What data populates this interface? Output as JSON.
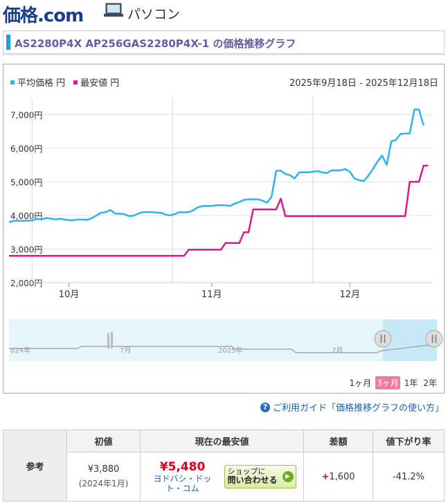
{
  "header": {
    "logo_main": "価格",
    "logo_dot": ".com",
    "category_icon": "laptop-icon",
    "category": "パソコン"
  },
  "title": "AS2280P4X AP256GAS2280P4X-1 の価格推移グラフ",
  "legend": {
    "avg": "平均価格 円",
    "min": "最安値 円"
  },
  "date_range": "2025年9月18日 - 2025年12月18日",
  "range_buttons": [
    "1ヶ月",
    "3ヶ月",
    "1年",
    "2年"
  ],
  "active_range": "3ヶ月",
  "navigator": {
    "labels": [
      "024年",
      "7月",
      "2025年",
      "7月"
    ]
  },
  "guide_link": "ご利用ガイド「価格推移グラフの使い方」",
  "reference": {
    "row_label": "参考",
    "headers": [
      "初値",
      "現在の最安値",
      "差額",
      "値下がり率"
    ],
    "initial_price": "¥3,880",
    "initial_date": "(2024年1月)",
    "current_price": "¥5,480",
    "shop_name": "ヨドバシ・ドット・コム",
    "ask_button_line1": "ショップに",
    "ask_button_line2": "問い合わせる",
    "diff_sign": "+",
    "diff_value": "1,600",
    "drop_rate": "-41.2%"
  },
  "colors": {
    "avg": "#29b6f0",
    "min": "#e8158a",
    "accent": "#1e9ee6",
    "title": "#6a58a8"
  },
  "chart_data": {
    "type": "line",
    "title": "",
    "xlabel": "",
    "ylabel": "",
    "ylim": [
      2000,
      7500
    ],
    "yticks": [
      "2,000円",
      "3,000円",
      "4,000円",
      "5,000円",
      "6,000円",
      "7,000円"
    ],
    "ytick_values": [
      2000,
      3000,
      4000,
      5000,
      6000,
      7000
    ],
    "xticks": [
      "10月",
      "11月",
      "12月"
    ],
    "xtick_days": [
      13,
      44,
      74
    ],
    "xrange_days": [
      0,
      92
    ],
    "series": [
      {
        "name": "平均価格 円",
        "points": [
          [
            0,
            3800
          ],
          [
            1,
            3840
          ],
          [
            3,
            3840
          ],
          [
            5,
            3850
          ],
          [
            6,
            3900
          ],
          [
            7,
            3880
          ],
          [
            8,
            3920
          ],
          [
            9,
            3910
          ],
          [
            10,
            3880
          ],
          [
            11,
            3900
          ],
          [
            12,
            3880
          ],
          [
            13,
            3860
          ],
          [
            14,
            3860
          ],
          [
            15,
            3880
          ],
          [
            17,
            3870
          ],
          [
            18,
            3920
          ],
          [
            19,
            4000
          ],
          [
            20,
            4080
          ],
          [
            21,
            4100
          ],
          [
            22,
            4160
          ],
          [
            23,
            4060
          ],
          [
            25,
            4040
          ],
          [
            26,
            3980
          ],
          [
            27,
            3990
          ],
          [
            28,
            4050
          ],
          [
            29,
            4100
          ],
          [
            31,
            4100
          ],
          [
            32,
            4080
          ],
          [
            33,
            4080
          ],
          [
            34,
            4020
          ],
          [
            35,
            4000
          ],
          [
            36,
            4040
          ],
          [
            37,
            4100
          ],
          [
            38,
            4090
          ],
          [
            39,
            4100
          ],
          [
            40,
            4150
          ],
          [
            41,
            4240
          ],
          [
            42,
            4280
          ],
          [
            44,
            4280
          ],
          [
            45,
            4300
          ],
          [
            47,
            4300
          ],
          [
            48,
            4280
          ],
          [
            49,
            4350
          ],
          [
            50,
            4400
          ],
          [
            51,
            4460
          ],
          [
            52,
            4480
          ],
          [
            54,
            4480
          ],
          [
            55,
            4440
          ],
          [
            56,
            4380
          ],
          [
            57,
            4550
          ],
          [
            58,
            5320
          ],
          [
            59,
            5330
          ],
          [
            60,
            5230
          ],
          [
            61,
            5200
          ],
          [
            62,
            5100
          ],
          [
            63,
            5280
          ],
          [
            65,
            5280
          ],
          [
            66,
            5300
          ],
          [
            67,
            5320
          ],
          [
            68,
            5280
          ],
          [
            69,
            5260
          ],
          [
            70,
            5340
          ],
          [
            72,
            5340
          ],
          [
            73,
            5380
          ],
          [
            74,
            5300
          ],
          [
            75,
            5100
          ],
          [
            76,
            5050
          ],
          [
            77,
            5020
          ],
          [
            78,
            5180
          ],
          [
            79,
            5380
          ],
          [
            80,
            5600
          ],
          [
            81,
            5780
          ],
          [
            82,
            5500
          ],
          [
            83,
            6200
          ],
          [
            84,
            6250
          ],
          [
            85,
            6420
          ],
          [
            87,
            6440
          ],
          [
            88,
            7150
          ],
          [
            89,
            7150
          ],
          [
            90,
            6680
          ]
        ]
      },
      {
        "name": "最安値 円",
        "points": [
          [
            0,
            2800
          ],
          [
            38,
            2800
          ],
          [
            39,
            2980
          ],
          [
            46,
            2980
          ],
          [
            47,
            3180
          ],
          [
            50,
            3180
          ],
          [
            51,
            3500
          ],
          [
            52,
            3500
          ],
          [
            53,
            4180
          ],
          [
            58,
            4180
          ],
          [
            59,
            4500
          ],
          [
            60,
            3980
          ],
          [
            86,
            3980
          ],
          [
            87,
            5000
          ],
          [
            89,
            5000
          ],
          [
            90,
            5480
          ],
          [
            91,
            5480
          ]
        ]
      }
    ]
  }
}
